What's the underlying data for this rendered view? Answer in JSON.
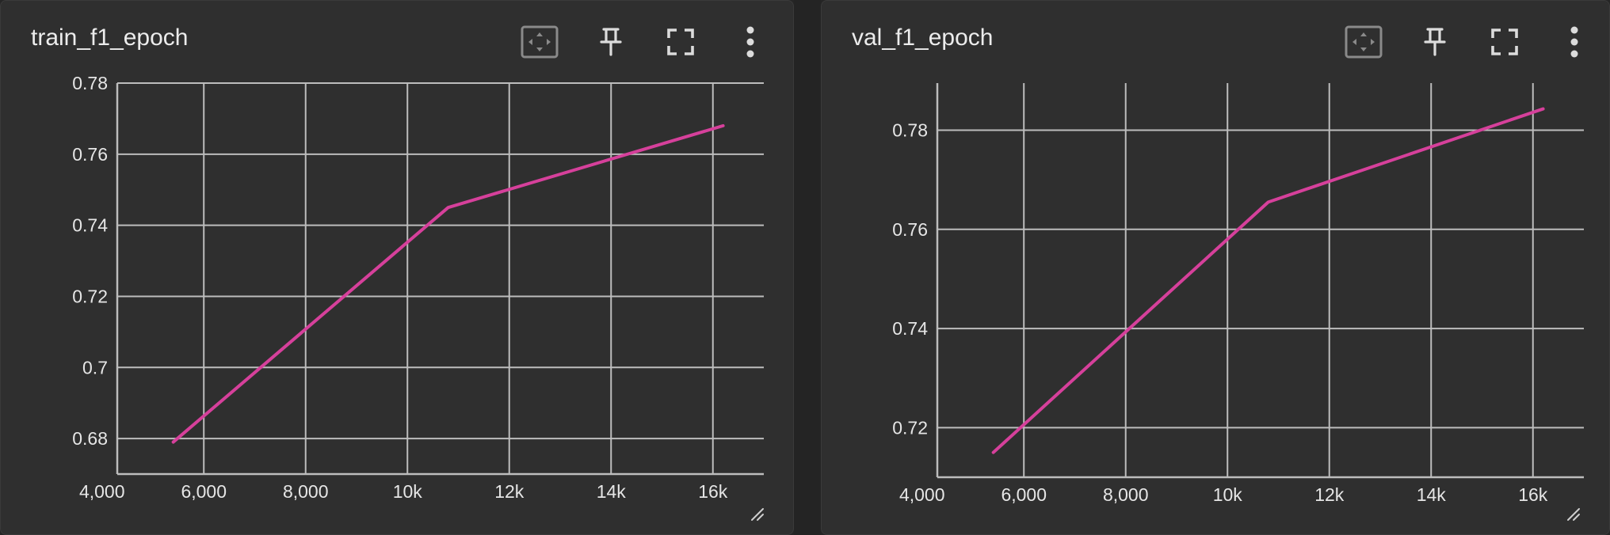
{
  "colors": {
    "series": "#d6409b",
    "grid": "#bdbdbd",
    "tick_text": "#e6e6e6",
    "panel_bg": "#2f2f2f"
  },
  "icons": [
    "fit-domain-icon",
    "pin-icon",
    "fullscreen-icon",
    "more-vert-icon",
    "resize-handle-icon"
  ],
  "chart_data": [
    {
      "type": "line",
      "title": "train_f1_epoch",
      "xlabel": "",
      "ylabel": "",
      "xlim": [
        4300,
        17000
      ],
      "ylim": [
        0.67,
        0.78
      ],
      "grid": true,
      "x_ticks": [
        {
          "value": 4000,
          "label": "4,000"
        },
        {
          "value": 6000,
          "label": "6,000"
        },
        {
          "value": 8000,
          "label": "8,000"
        },
        {
          "value": 10000,
          "label": "10k"
        },
        {
          "value": 12000,
          "label": "12k"
        },
        {
          "value": 14000,
          "label": "14k"
        },
        {
          "value": 16000,
          "label": "16k"
        }
      ],
      "y_ticks": [
        {
          "value": 0.68,
          "label": "0.68"
        },
        {
          "value": 0.7,
          "label": "0.7"
        },
        {
          "value": 0.72,
          "label": "0.72"
        },
        {
          "value": 0.74,
          "label": "0.74"
        },
        {
          "value": 0.76,
          "label": "0.76"
        },
        {
          "value": 0.78,
          "label": "0.78"
        }
      ],
      "series": [
        {
          "x": [
            5400,
            10800,
            16200
          ],
          "y": [
            0.679,
            0.745,
            0.768
          ]
        }
      ]
    },
    {
      "type": "line",
      "title": "val_f1_epoch",
      "xlabel": "",
      "ylabel": "",
      "xlim": [
        4300,
        17000
      ],
      "ylim": [
        0.71,
        0.7895
      ],
      "grid": true,
      "x_ticks": [
        {
          "value": 4000,
          "label": "4,000"
        },
        {
          "value": 6000,
          "label": "6,000"
        },
        {
          "value": 8000,
          "label": "8,000"
        },
        {
          "value": 10000,
          "label": "10k"
        },
        {
          "value": 12000,
          "label": "12k"
        },
        {
          "value": 14000,
          "label": "14k"
        },
        {
          "value": 16000,
          "label": "16k"
        }
      ],
      "y_ticks": [
        {
          "value": 0.72,
          "label": "0.72"
        },
        {
          "value": 0.74,
          "label": "0.74"
        },
        {
          "value": 0.76,
          "label": "0.76"
        },
        {
          "value": 0.78,
          "label": "0.78"
        }
      ],
      "series": [
        {
          "x": [
            5400,
            10800,
            16200
          ],
          "y": [
            0.715,
            0.7655,
            0.7843
          ]
        }
      ]
    }
  ]
}
